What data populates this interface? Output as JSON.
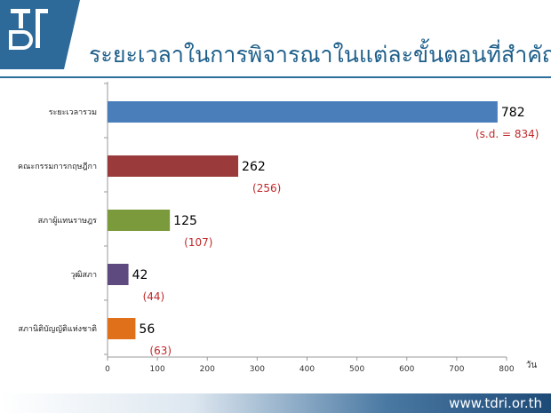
{
  "logo": {
    "text": "TDRI",
    "colors": {
      "bg": "#2d6a99",
      "fg": "#ffffff"
    }
  },
  "header": {
    "title": "ระยะเวลาในการพิจารณาในแต่ละขั้นตอนที่สำคัญ"
  },
  "footer": {
    "url": "www.tdri.or.th"
  },
  "chart_data": {
    "type": "bar",
    "orientation": "horizontal",
    "title": "",
    "xlabel": "วัน",
    "ylabel": "",
    "xlim": [
      0,
      800
    ],
    "xticks": [
      0,
      100,
      200,
      300,
      400,
      500,
      600,
      700,
      800
    ],
    "grid": false,
    "categories": [
      "ระยะเวลารวม",
      "คณะกรรมการกฤษฎีกา",
      "สภาผู้แทนราษฎร",
      "วุฒิสภา",
      "สภานิติบัญญัติแห่งชาติ"
    ],
    "values": [
      782,
      262,
      125,
      42,
      56
    ],
    "value_labels": [
      "782",
      "262",
      "125",
      "42",
      "56"
    ],
    "sd_labels": [
      "(s.d. = 834)",
      "(256)",
      "(107)",
      "(44)",
      "(63)"
    ],
    "colors": [
      "#4a7ebb",
      "#9a3a3a",
      "#7a9a3c",
      "#5e4a7e",
      "#e0701a"
    ],
    "sd_color": "#c0282a"
  }
}
